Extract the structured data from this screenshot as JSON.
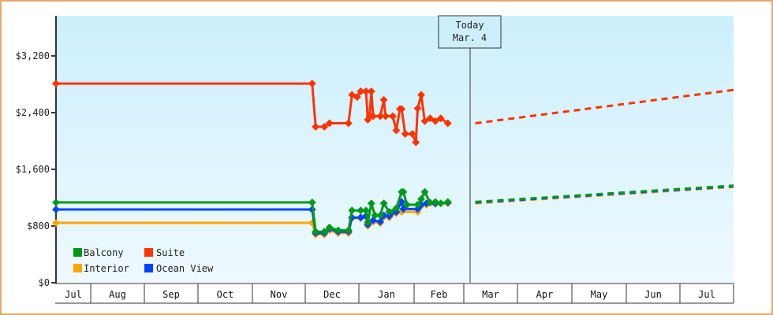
{
  "chart_data": {
    "type": "line",
    "title": "",
    "xlabel": "",
    "ylabel": "",
    "ylim": [
      0,
      3800
    ],
    "y_ticks": [
      "$0",
      "$800",
      "$1,600",
      "$2,400",
      "$3,200"
    ],
    "y_tick_values": [
      0,
      800,
      1600,
      2400,
      3200
    ],
    "x_months": [
      "Jul",
      "Aug",
      "Sep",
      "Oct",
      "Nov",
      "Dec",
      "Jan",
      "Feb",
      "Mar",
      "Apr",
      "May",
      "Jun",
      "Jul"
    ],
    "grid": false,
    "legend_position": "lower-left inside",
    "today_marker": {
      "line1": "Today",
      "line2": "Mar. 4"
    },
    "colors": {
      "Balcony": "#009a1a",
      "Suite": "#ff3300",
      "Interior": "#ffa500",
      "Ocean View": "#0044ff"
    },
    "series": [
      {
        "name": "Suite",
        "historical": [
          [
            "Jul 1",
            2810
          ],
          [
            "Dec 5",
            2810
          ],
          [
            "Dec 7",
            2200
          ],
          [
            "Dec 12",
            2200
          ],
          [
            "Dec 15",
            2250
          ],
          [
            "Dec 26",
            2250
          ],
          [
            "Dec 28",
            2650
          ],
          [
            "Dec 31",
            2620
          ],
          [
            "Jan 2",
            2700
          ],
          [
            "Jan 5",
            2700
          ],
          [
            "Jan 6",
            2300
          ],
          [
            "Jan 7",
            2350
          ],
          [
            "Jan 8",
            2700
          ],
          [
            "Jan 9",
            2350
          ],
          [
            "Jan 13",
            2350
          ],
          [
            "Jan 15",
            2580
          ],
          [
            "Jan 16",
            2350
          ],
          [
            "Jan 20",
            2350
          ],
          [
            "Jan 22",
            2150
          ],
          [
            "Jan 24",
            2450
          ],
          [
            "Jan 25",
            2450
          ],
          [
            "Jan 27",
            2100
          ],
          [
            "Jan 31",
            2100
          ],
          [
            "Feb 2",
            1980
          ],
          [
            "Feb 3",
            2460
          ],
          [
            "Feb 5",
            2650
          ],
          [
            "Feb 7",
            2280
          ],
          [
            "Feb 10",
            2320
          ],
          [
            "Feb 13",
            2280
          ],
          [
            "Feb 16",
            2320
          ],
          [
            "Feb 20",
            2250
          ]
        ],
        "forecast": [
          [
            "Mar 4",
            2250
          ],
          [
            "Jul 31",
            2720
          ]
        ]
      },
      {
        "name": "Balcony",
        "historical": [
          [
            "Jul 1",
            1133
          ],
          [
            "Dec 5",
            1133
          ],
          [
            "Dec 7",
            720
          ],
          [
            "Dec 12",
            720
          ],
          [
            "Dec 15",
            780
          ],
          [
            "Dec 20",
            740
          ],
          [
            "Dec 26",
            740
          ],
          [
            "Dec 28",
            1020
          ],
          [
            "Jan 2",
            1020
          ],
          [
            "Jan 5",
            1020
          ],
          [
            "Jan 6",
            850
          ],
          [
            "Jan 8",
            1120
          ],
          [
            "Jan 10",
            950
          ],
          [
            "Jan 13",
            950
          ],
          [
            "Jan 15",
            1120
          ],
          [
            "Jan 18",
            1000
          ],
          [
            "Jan 22",
            1050
          ],
          [
            "Jan 25",
            1280
          ],
          [
            "Jan 26",
            1280
          ],
          [
            "Jan 28",
            1100
          ],
          [
            "Feb 3",
            1100
          ],
          [
            "Feb 5",
            1180
          ],
          [
            "Feb 7",
            1280
          ],
          [
            "Feb 10",
            1130
          ],
          [
            "Feb 13",
            1140
          ],
          [
            "Feb 16",
            1120
          ],
          [
            "Feb 20",
            1140
          ]
        ],
        "forecast": [
          [
            "Mar 4",
            1140
          ],
          [
            "Jul 31",
            1370
          ]
        ]
      },
      {
        "name": "Ocean View",
        "historical": [
          [
            "Jul 1",
            1033
          ],
          [
            "Dec 5",
            1033
          ],
          [
            "Dec 7",
            700
          ],
          [
            "Dec 12",
            700
          ],
          [
            "Dec 15",
            760
          ],
          [
            "Dec 20",
            720
          ],
          [
            "Dec 26",
            720
          ],
          [
            "Dec 28",
            920
          ],
          [
            "Jan 2",
            920
          ],
          [
            "Jan 5",
            940
          ],
          [
            "Jan 6",
            820
          ],
          [
            "Jan 9",
            880
          ],
          [
            "Jan 13",
            860
          ],
          [
            "Jan 15",
            950
          ],
          [
            "Jan 18",
            940
          ],
          [
            "Jan 22",
            1000
          ],
          [
            "Jan 25",
            1140
          ],
          [
            "Jan 26",
            1040
          ],
          [
            "Feb 3",
            1040
          ],
          [
            "Feb 5",
            1100
          ],
          [
            "Feb 8",
            1120
          ],
          [
            "Feb 13",
            1120
          ],
          [
            "Feb 20",
            1130
          ]
        ],
        "forecast": [
          [
            "Mar 4",
            1130
          ],
          [
            "Jul 31",
            1360
          ]
        ]
      },
      {
        "name": "Interior",
        "historical": [
          [
            "Jul 1",
            844
          ],
          [
            "Dec 5",
            844
          ],
          [
            "Dec 7",
            680
          ],
          [
            "Dec 12",
            680
          ],
          [
            "Dec 15",
            740
          ],
          [
            "Dec 20",
            700
          ],
          [
            "Dec 26",
            700
          ],
          [
            "Dec 28",
            910
          ],
          [
            "Jan 2",
            910
          ],
          [
            "Jan 5",
            930
          ],
          [
            "Jan 6",
            800
          ],
          [
            "Jan 9",
            860
          ],
          [
            "Jan 13",
            840
          ],
          [
            "Jan 15",
            930
          ],
          [
            "Jan 18",
            920
          ],
          [
            "Jan 22",
            980
          ],
          [
            "Jan 25",
            1000
          ],
          [
            "Feb 3",
            1000
          ],
          [
            "Feb 5",
            1080
          ],
          [
            "Feb 8",
            1100
          ],
          [
            "Feb 13",
            1110
          ],
          [
            "Feb 20",
            1120
          ]
        ],
        "forecast": [
          [
            "Mar 4",
            1120
          ],
          [
            "Jul 31",
            1350
          ]
        ]
      }
    ]
  },
  "legend": [
    {
      "label": "Balcony",
      "color": "#009a1a"
    },
    {
      "label": "Suite",
      "color": "#ff3300"
    },
    {
      "label": "Interior",
      "color": "#ffa500"
    },
    {
      "label": "Ocean View",
      "color": "#0044ff"
    }
  ]
}
